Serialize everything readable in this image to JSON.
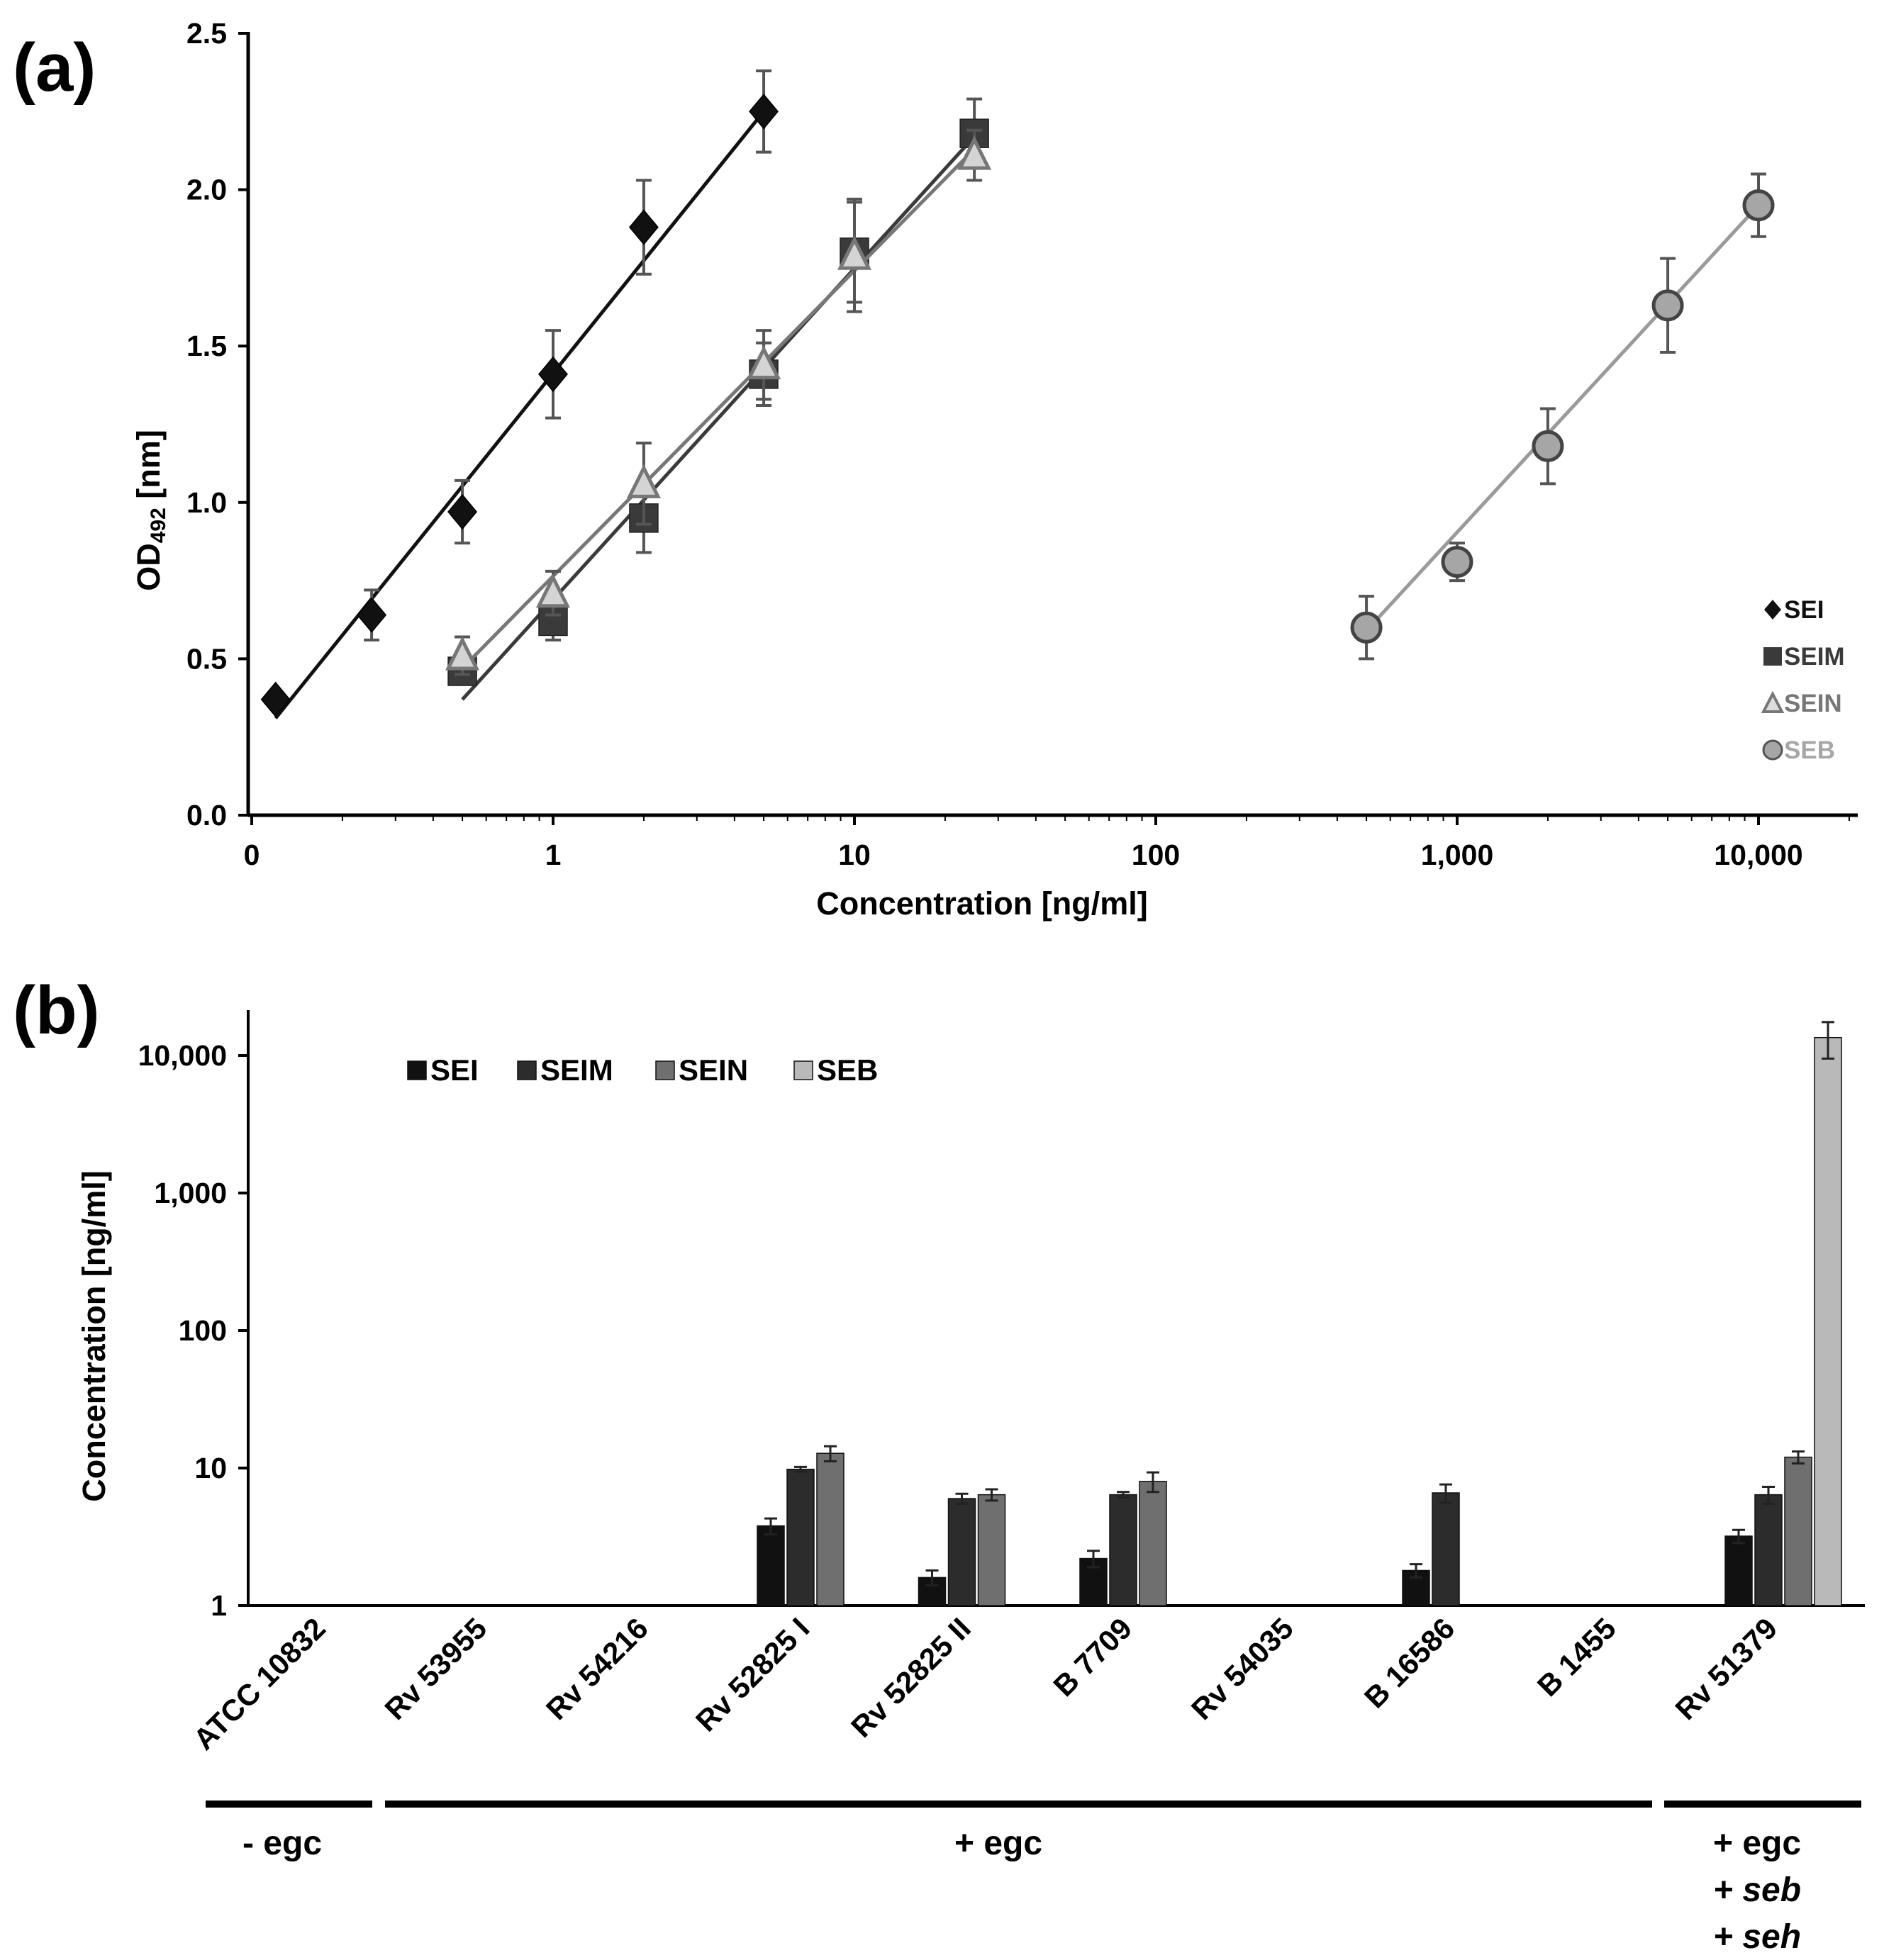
{
  "figure": {
    "panel_a_label": "(a)",
    "panel_b_label": "(b)"
  },
  "chart_data": [
    {
      "type": "scatter",
      "panel": "(a)",
      "title": "",
      "xlabel": "Concentration [ng/ml]",
      "ylabel_main": "OD",
      "ylabel_sub": "492",
      "ylabel_unit": " [nm]",
      "xscale": "log",
      "xlim": [
        0.1,
        25000
      ],
      "ylim": [
        0,
        2.5
      ],
      "grid": false,
      "legend_position": "bottom-right",
      "x_ticks": [
        {
          "value": 0.1,
          "label": "0"
        },
        {
          "value": 1,
          "label": "1"
        },
        {
          "value": 10,
          "label": "10"
        },
        {
          "value": 100,
          "label": "100"
        },
        {
          "value": 1000,
          "label": "1,000"
        },
        {
          "value": 10000,
          "label": "10,000"
        }
      ],
      "y_ticks": [
        {
          "value": 0,
          "label": "0.0"
        },
        {
          "value": 0.5,
          "label": "0.5"
        },
        {
          "value": 1.0,
          "label": "1.0"
        },
        {
          "value": 1.5,
          "label": "1.5"
        },
        {
          "value": 2.0,
          "label": "2.0"
        },
        {
          "value": 2.5,
          "label": "2.5"
        }
      ],
      "series": [
        {
          "name": "SEI",
          "marker": "diamond",
          "color": "#111111",
          "points": [
            {
              "x": 0.12,
              "y": 0.37,
              "err": 0.02
            },
            {
              "x": 0.25,
              "y": 0.64,
              "err": 0.08
            },
            {
              "x": 0.5,
              "y": 0.97,
              "err": 0.1
            },
            {
              "x": 1,
              "y": 1.41,
              "err": 0.14
            },
            {
              "x": 2,
              "y": 1.88,
              "err": 0.15
            },
            {
              "x": 5,
              "y": 2.25,
              "err": 0.13
            }
          ],
          "fit": {
            "x0": 0.12,
            "y0": 0.31,
            "x1": 5,
            "y1": 2.25
          }
        },
        {
          "name": "SEIM",
          "marker": "square",
          "color": "#3a3a3a",
          "points": [
            {
              "x": 0.5,
              "y": 0.46,
              "err": 0.04
            },
            {
              "x": 1,
              "y": 0.62,
              "err": 0.06
            },
            {
              "x": 2,
              "y": 0.95,
              "err": 0.11
            },
            {
              "x": 5,
              "y": 1.41,
              "err": 0.1
            },
            {
              "x": 10,
              "y": 1.8,
              "err": 0.16
            },
            {
              "x": 25,
              "y": 2.18,
              "err": 0.11
            }
          ],
          "fit": {
            "x0": 0.5,
            "y0": 0.37,
            "x1": 25,
            "y1": 2.17
          }
        },
        {
          "name": "SEIN",
          "marker": "triangle",
          "color": "#777777",
          "points": [
            {
              "x": 0.5,
              "y": 0.51,
              "err": 0.06
            },
            {
              "x": 1,
              "y": 0.71,
              "err": 0.07
            },
            {
              "x": 2,
              "y": 1.06,
              "err": 0.13
            },
            {
              "x": 5,
              "y": 1.44,
              "err": 0.11
            },
            {
              "x": 10,
              "y": 1.79,
              "err": 0.18
            },
            {
              "x": 25,
              "y": 2.11,
              "err": 0.08
            }
          ],
          "fit": {
            "x0": 0.5,
            "y0": 0.47,
            "x1": 25,
            "y1": 2.13
          }
        },
        {
          "name": "SEB",
          "marker": "circle",
          "color": "#a6a6a6",
          "points": [
            {
              "x": 500,
              "y": 0.6,
              "err": 0.1
            },
            {
              "x": 1000,
              "y": 0.81,
              "err": 0.06
            },
            {
              "x": 2000,
              "y": 1.18,
              "err": 0.12
            },
            {
              "x": 5000,
              "y": 1.63,
              "err": 0.15
            },
            {
              "x": 10000,
              "y": 1.95,
              "err": 0.1
            }
          ],
          "fit": {
            "x0": 500,
            "y0": 0.59,
            "x1": 10000,
            "y1": 1.95
          }
        }
      ]
    },
    {
      "type": "bar",
      "panel": "(b)",
      "title": "",
      "xlabel": "",
      "ylabel": "Concentration [ng/ml]",
      "yscale": "log",
      "ylim": [
        1,
        20000
      ],
      "grid": false,
      "legend_position": "top-left",
      "y_ticks": [
        {
          "value": 1,
          "label": "1"
        },
        {
          "value": 10,
          "label": "10"
        },
        {
          "value": 100,
          "label": "100"
        },
        {
          "value": 1000,
          "label": "1,000"
        },
        {
          "value": 10000,
          "label": "10,000"
        }
      ],
      "categories": [
        "ATCC 10832",
        "Rv 53955",
        "Rv 54216",
        "Rv 52825 I",
        "Rv 52825 II",
        "B 7709",
        "Rv 54035",
        "B 16586",
        "B 1455",
        "Rv 51379"
      ],
      "series": [
        {
          "name": "SEI",
          "color": "#111111",
          "values": [
            null,
            null,
            null,
            3.8,
            1.6,
            2.2,
            null,
            1.8,
            null,
            3.2
          ],
          "errors": [
            null,
            null,
            null,
            0.5,
            0.2,
            0.3,
            null,
            0.2,
            null,
            0.35
          ]
        },
        {
          "name": "SEIM",
          "color": "#2c2c2c",
          "values": [
            null,
            null,
            null,
            9.8,
            6.0,
            6.4,
            null,
            6.6,
            null,
            6.4
          ],
          "errors": [
            null,
            null,
            null,
            0.4,
            0.5,
            0.3,
            null,
            1.0,
            null,
            0.9
          ]
        },
        {
          "name": "SEIN",
          "color": "#6f6f6f",
          "values": [
            null,
            null,
            null,
            12.8,
            6.4,
            8.0,
            null,
            null,
            null,
            12.0
          ],
          "errors": [
            null,
            null,
            null,
            1.6,
            0.6,
            1.3,
            null,
            null,
            null,
            1.2
          ]
        },
        {
          "name": "SEB",
          "color": "#b9b9b9",
          "values": [
            null,
            null,
            null,
            null,
            null,
            null,
            null,
            null,
            null,
            13500
          ],
          "errors": [
            null,
            null,
            null,
            null,
            null,
            null,
            null,
            null,
            null,
            4000
          ]
        }
      ],
      "groups": [
        {
          "label_lines": [
            "- egc"
          ],
          "start_index": 0,
          "end_index": 0
        },
        {
          "label_lines": [
            "+ egc"
          ],
          "start_index": 1,
          "end_index": 8
        },
        {
          "label_lines": [
            "+ egc",
            "+ seb",
            "+ seh"
          ],
          "italic_lines": [
            1,
            2
          ],
          "start_index": 9,
          "end_index": 9
        }
      ]
    }
  ]
}
